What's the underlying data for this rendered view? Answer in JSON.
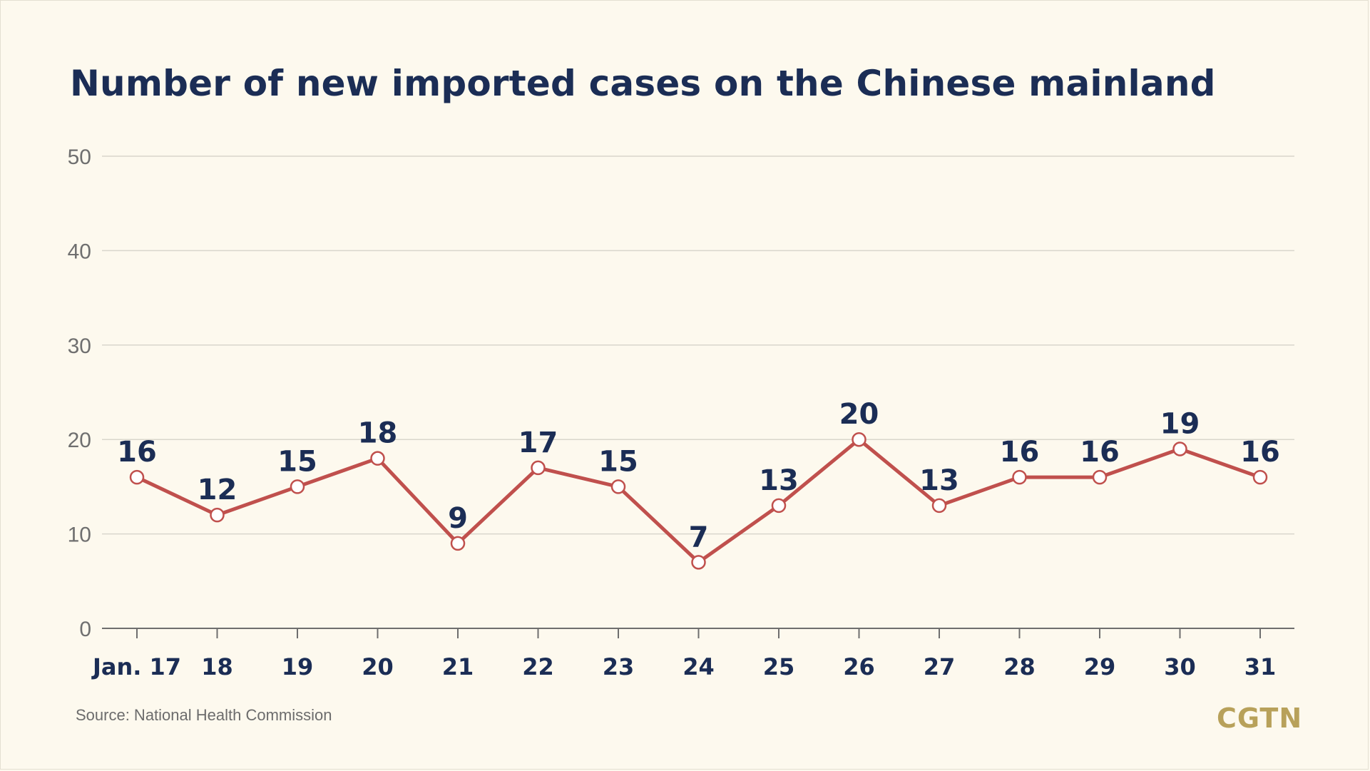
{
  "header": {
    "title": "Number of new imported cases on the Chinese mainland"
  },
  "footer": {
    "source": "Source: National Health Commission",
    "brand": "CGTN"
  },
  "colors": {
    "line": "#c0504d",
    "title": "#1b2d55",
    "axis_tick_text": "#6f6f6f",
    "grid": "#d9d6cc",
    "brand": "#b8a15a",
    "background": "#fdf9ee"
  },
  "chart_data": {
    "type": "line",
    "title": "Number of new imported cases on the Chinese mainland",
    "xlabel": "",
    "ylabel": "",
    "categories": [
      "Jan. 17",
      "18",
      "19",
      "20",
      "21",
      "22",
      "23",
      "24",
      "25",
      "26",
      "27",
      "28",
      "29",
      "30",
      "31"
    ],
    "values": [
      16,
      12,
      15,
      18,
      9,
      17,
      15,
      7,
      13,
      20,
      13,
      16,
      16,
      19,
      16
    ],
    "ylim": [
      0,
      50
    ],
    "yticks": [
      0,
      10,
      20,
      30,
      40,
      50
    ],
    "grid": true,
    "data_labels": true,
    "legend": "none"
  }
}
